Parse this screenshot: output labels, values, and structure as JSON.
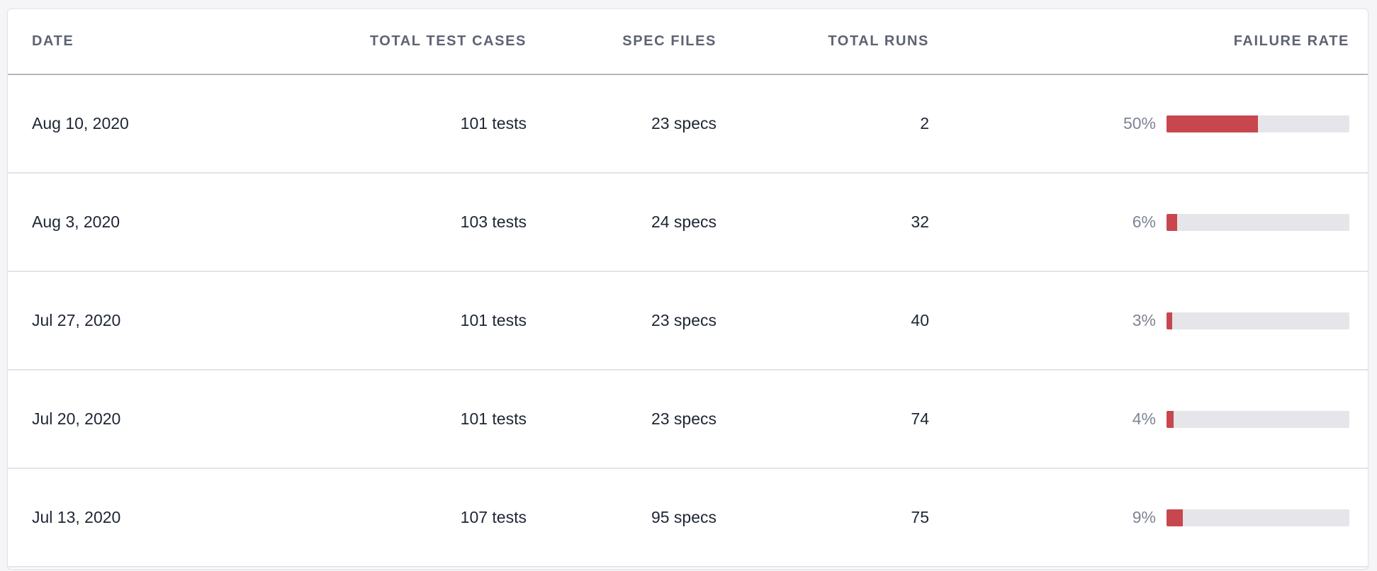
{
  "table": {
    "columns": [
      {
        "key": "date",
        "label": "DATE"
      },
      {
        "key": "tests",
        "label": "TOTAL TEST CASES"
      },
      {
        "key": "specs",
        "label": "SPEC FILES"
      },
      {
        "key": "runs",
        "label": "TOTAL RUNS"
      },
      {
        "key": "failure",
        "label": "FAILURE RATE"
      }
    ],
    "rows": [
      {
        "date": "Aug 10, 2020",
        "tests": "101 tests",
        "specs": "23 specs",
        "runs": "2",
        "failure_label": "50%",
        "failure_pct": 50
      },
      {
        "date": "Aug 3, 2020",
        "tests": "103 tests",
        "specs": "24 specs",
        "runs": "32",
        "failure_label": "6%",
        "failure_pct": 6
      },
      {
        "date": "Jul 27, 2020",
        "tests": "101 tests",
        "specs": "23 specs",
        "runs": "40",
        "failure_label": "3%",
        "failure_pct": 3
      },
      {
        "date": "Jul 20, 2020",
        "tests": "101 tests",
        "specs": "23 specs",
        "runs": "74",
        "failure_label": "4%",
        "failure_pct": 4
      },
      {
        "date": "Jul 13, 2020",
        "tests": "107 tests",
        "specs": "95 specs",
        "runs": "75",
        "failure_label": "9%",
        "failure_pct": 9
      }
    ],
    "colors": {
      "bar_fill": "#c8474e",
      "bar_track": "#e5e5ea",
      "header_text": "#5e6372",
      "body_text": "#1e2634",
      "pct_text": "#7f8394",
      "page_background": "#f5f5f7"
    }
  }
}
